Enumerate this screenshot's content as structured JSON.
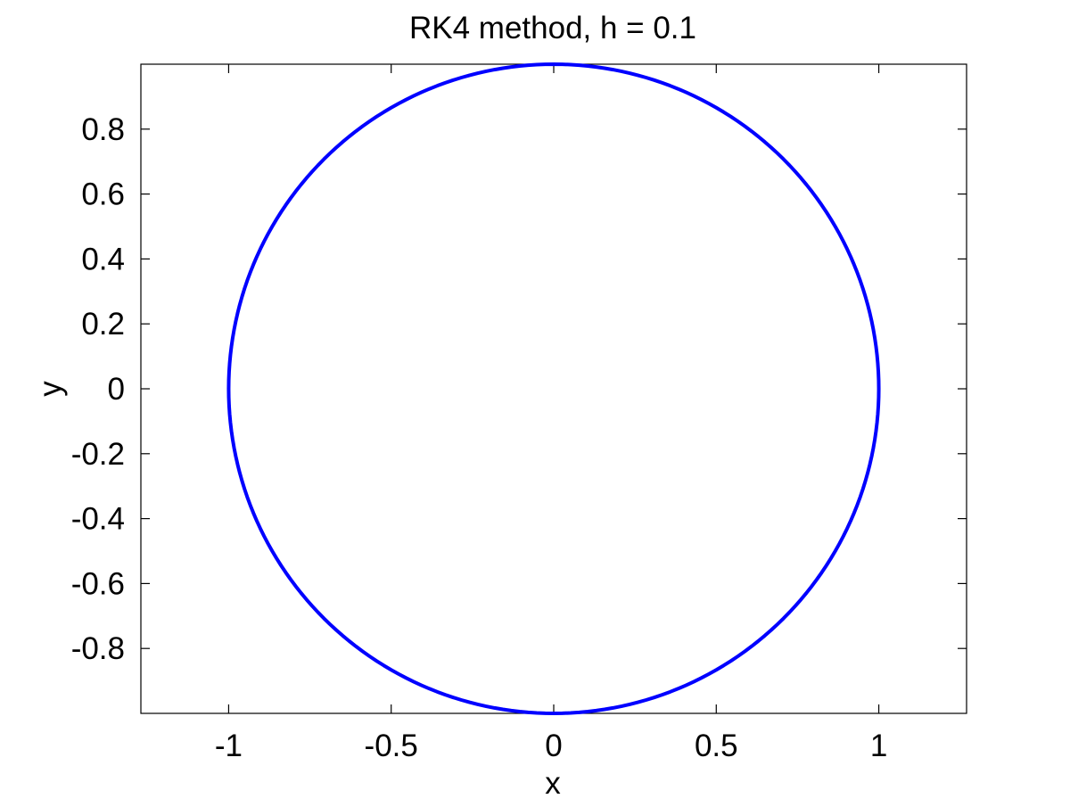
{
  "chart_data": {
    "type": "line",
    "title": "RK4 method, h = 0.1",
    "xlabel": "x",
    "ylabel": "y",
    "xlim": [
      -1.27,
      1.27
    ],
    "ylim": [
      -1.0,
      1.0
    ],
    "xticks": [
      -1,
      -0.5,
      0,
      0.5,
      1
    ],
    "xtick_labels": [
      "-1",
      "-0.5",
      "0",
      "0.5",
      "1"
    ],
    "yticks": [
      -0.8,
      -0.6,
      -0.4,
      -0.2,
      0,
      0.2,
      0.4,
      0.6,
      0.8
    ],
    "ytick_labels": [
      "-0.8",
      "-0.6",
      "-0.4",
      "-0.2",
      "0",
      "0.2",
      "0.4",
      "0.6",
      "0.8"
    ],
    "grid": false,
    "series": [
      {
        "color": "#0000ff",
        "curve": "circle",
        "center": [
          0,
          0
        ],
        "radius": 1.0
      }
    ]
  }
}
